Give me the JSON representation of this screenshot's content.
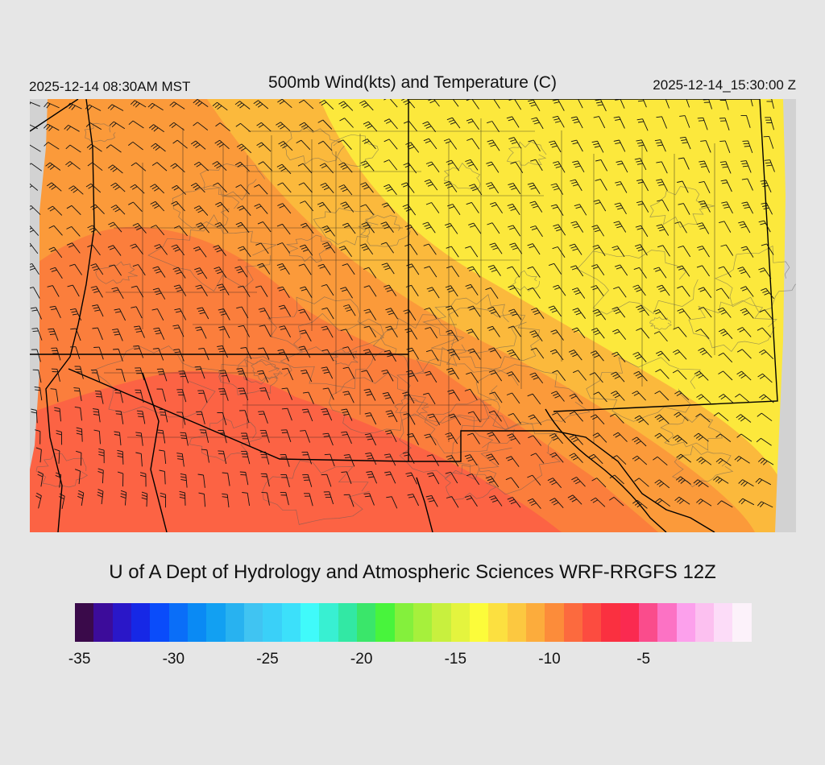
{
  "header": {
    "valid_local": "2025-12-14 08:30AM MST",
    "title": "500mb Wind(kts) and Temperature (C)",
    "valid_utc": "2025-12-14_15:30:00 Z"
  },
  "credit": "U of A Dept of Hydrology and Atmospheric Sciences WRF-RRGFS 12Z",
  "colorbar": {
    "colors": [
      "#3a0a4a",
      "#3c0c9a",
      "#2a17c8",
      "#1628e6",
      "#0a4cfa",
      "#0a6ef8",
      "#0a8af4",
      "#12a0f2",
      "#28b2f0",
      "#40c4f2",
      "#3ad0f8",
      "#3ce0fa",
      "#40fafa",
      "#38f0d2",
      "#32e8a4",
      "#3ae66a",
      "#48f43c",
      "#84f03c",
      "#a6f03c",
      "#c8f03e",
      "#e4f43e",
      "#fcfc3a",
      "#fce040",
      "#fcc840",
      "#fcac3c",
      "#fc8c3a",
      "#fc6a3e",
      "#fc4c40",
      "#fa3040",
      "#fa2a50",
      "#fa4c8c",
      "#fc72c4",
      "#fca0ec",
      "#fcc0f0",
      "#fcdcf8",
      "#fcf2fa"
    ],
    "ticks": [
      "-35",
      "-30",
      "-25",
      "-20",
      "-15",
      "-10",
      "-5"
    ],
    "tick_indices": [
      0.5,
      5.5,
      10.5,
      15.5,
      20.5,
      25.5,
      30.5
    ]
  },
  "map": {
    "field": "500mb temperature (C) with wind barbs (kts)",
    "colors": {
      "warmest": "#fc6344",
      "warm": "#fb7e3c",
      "mid": "#fb9a3a",
      "cool": "#fbb93c",
      "coolest": "#fce83c",
      "no_data": "#d2d2d2",
      "boundaries": "#000000",
      "contours": "#5a5a5a",
      "barbs": "#111111"
    },
    "wind_speed_range_kts": [
      15,
      40
    ]
  }
}
